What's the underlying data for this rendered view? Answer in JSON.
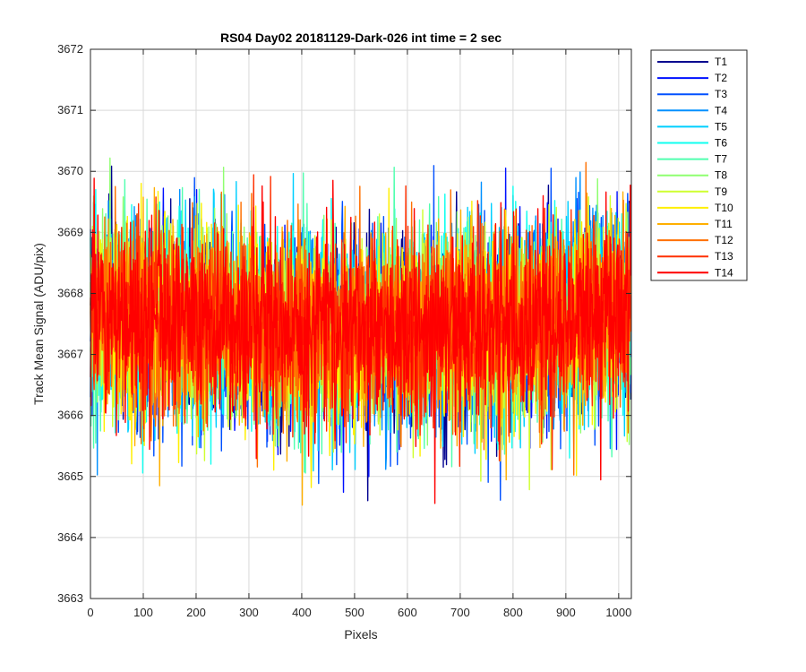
{
  "chart_data": {
    "type": "line",
    "title": "RS04 Day02 20181129-Dark-026 int time = 2 sec",
    "xlabel": "Pixels",
    "ylabel": "Track Mean Signal (ADU/pix)",
    "xlim": [
      0,
      1024
    ],
    "ylim": [
      3663,
      3672
    ],
    "xticks": [
      "0",
      "100",
      "200",
      "300",
      "400",
      "500",
      "600",
      "700",
      "800",
      "900",
      "1000"
    ],
    "yticks": [
      "3663",
      "3664",
      "3665",
      "3666",
      "3667",
      "3668",
      "3669",
      "3670",
      "3671",
      "3672"
    ],
    "grid": true,
    "legend_position": "outside-top-right",
    "noise": {
      "n_points": 1024,
      "mean_center": 3667.4,
      "mean_edge": 3667.7,
      "sigma": 0.78
    },
    "series": [
      {
        "name": "T1",
        "color": "#00008f"
      },
      {
        "name": "T2",
        "color": "#0010ff"
      },
      {
        "name": "T3",
        "color": "#0050ff"
      },
      {
        "name": "T4",
        "color": "#0090ff"
      },
      {
        "name": "T5",
        "color": "#00cfff"
      },
      {
        "name": "T6",
        "color": "#10ffef"
      },
      {
        "name": "T7",
        "color": "#50ffaf"
      },
      {
        "name": "T8",
        "color": "#8fff70"
      },
      {
        "name": "T9",
        "color": "#cfff30"
      },
      {
        "name": "T10",
        "color": "#ffef00"
      },
      {
        "name": "T11",
        "color": "#ffaf00"
      },
      {
        "name": "T12",
        "color": "#ff7000"
      },
      {
        "name": "T13",
        "color": "#ff3000"
      },
      {
        "name": "T14",
        "color": "#ff0000"
      }
    ]
  }
}
